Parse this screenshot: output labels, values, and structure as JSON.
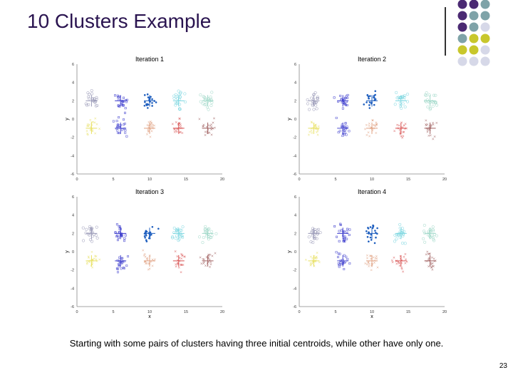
{
  "slide": {
    "title": "10 Clusters Example",
    "caption": "Starting with some pairs of clusters having three initial centroids, while other have only one.",
    "page_number": "23"
  },
  "decor": {
    "dot_colors": [
      "#4b2a73",
      "#7fa3a8",
      "#c8c72c",
      "#d6d8e8"
    ]
  },
  "chart_data": [
    {
      "type": "scatter",
      "title": "Iteration 1",
      "xlabel": "",
      "ylabel": "y",
      "xlim": [
        0,
        20
      ],
      "ylim": [
        -6,
        6
      ],
      "xticks": [
        "0",
        "5",
        "10",
        "15",
        "20"
      ],
      "yticks": [
        "6",
        "4",
        "2",
        "0",
        "-2",
        "-4",
        "-6"
      ],
      "clusters": [
        {
          "center": [
            2,
            2
          ],
          "color": "#9a9ab8"
        },
        {
          "center": [
            6,
            2
          ],
          "color": "#3a3acc"
        },
        {
          "center": [
            10,
            2
          ],
          "color": "#1f5fbf"
        },
        {
          "center": [
            14,
            2
          ],
          "color": "#7ad6e0"
        },
        {
          "center": [
            18,
            2
          ],
          "color": "#9ed8c8"
        },
        {
          "center": [
            2,
            -1
          ],
          "color": "#e8e060"
        },
        {
          "center": [
            6,
            -1
          ],
          "color": "#4a4ad0"
        },
        {
          "center": [
            10,
            -1
          ],
          "color": "#e0a080"
        },
        {
          "center": [
            14,
            -1
          ],
          "color": "#d85050"
        },
        {
          "center": [
            18,
            -1
          ],
          "color": "#a06060"
        }
      ],
      "centroids": [
        [
          2,
          2
        ],
        [
          6,
          2
        ],
        [
          10,
          2
        ],
        [
          14,
          2
        ],
        [
          18,
          2
        ],
        [
          2,
          -1
        ],
        [
          6,
          -1
        ],
        [
          10,
          -1
        ],
        [
          14,
          -1
        ],
        [
          18,
          -1
        ]
      ]
    },
    {
      "type": "scatter",
      "title": "Iteration 2",
      "xlabel": "",
      "ylabel": "y",
      "xlim": [
        0,
        20
      ],
      "ylim": [
        -6,
        6
      ],
      "xticks": [
        "0",
        "5",
        "10",
        "15",
        "20"
      ],
      "yticks": [
        "6",
        "4",
        "2",
        "0",
        "-2",
        "-4",
        "-6"
      ],
      "clusters": [
        {
          "center": [
            2,
            2
          ],
          "color": "#9a9ab8"
        },
        {
          "center": [
            6,
            2
          ],
          "color": "#3a3acc"
        },
        {
          "center": [
            10,
            2
          ],
          "color": "#1f5fbf"
        },
        {
          "center": [
            14,
            2
          ],
          "color": "#7ad6e0"
        },
        {
          "center": [
            18,
            2
          ],
          "color": "#9ed8c8"
        },
        {
          "center": [
            2,
            -1
          ],
          "color": "#e8e060"
        },
        {
          "center": [
            6,
            -1
          ],
          "color": "#4a4ad0"
        },
        {
          "center": [
            10,
            -1
          ],
          "color": "#e0a080"
        },
        {
          "center": [
            14,
            -1
          ],
          "color": "#d85050"
        },
        {
          "center": [
            18,
            -1
          ],
          "color": "#a06060"
        }
      ],
      "centroids": [
        [
          2,
          2
        ],
        [
          6,
          2
        ],
        [
          10,
          2
        ],
        [
          14,
          2
        ],
        [
          18,
          2
        ],
        [
          2,
          -1
        ],
        [
          6,
          -1
        ],
        [
          10,
          -1
        ],
        [
          14,
          -1
        ],
        [
          18,
          -1
        ]
      ]
    },
    {
      "type": "scatter",
      "title": "Iteration 3",
      "xlabel": "x",
      "ylabel": "y",
      "xlim": [
        0,
        20
      ],
      "ylim": [
        -6,
        6
      ],
      "xticks": [
        "0",
        "5",
        "10",
        "15",
        "20"
      ],
      "yticks": [
        "6",
        "4",
        "2",
        "0",
        "-2",
        "-4",
        "-6"
      ],
      "clusters": [
        {
          "center": [
            2,
            2
          ],
          "color": "#9a9ab8"
        },
        {
          "center": [
            6,
            2
          ],
          "color": "#3a3acc"
        },
        {
          "center": [
            10,
            2
          ],
          "color": "#1f5fbf"
        },
        {
          "center": [
            14,
            2
          ],
          "color": "#7ad6e0"
        },
        {
          "center": [
            18,
            2
          ],
          "color": "#9ed8c8"
        },
        {
          "center": [
            2,
            -1
          ],
          "color": "#e8e060"
        },
        {
          "center": [
            6,
            -1
          ],
          "color": "#4a4ad0"
        },
        {
          "center": [
            10,
            -1
          ],
          "color": "#e0a080"
        },
        {
          "center": [
            14,
            -1
          ],
          "color": "#d85050"
        },
        {
          "center": [
            18,
            -1
          ],
          "color": "#a06060"
        }
      ],
      "centroids": [
        [
          2,
          2
        ],
        [
          6,
          2
        ],
        [
          10,
          2
        ],
        [
          14,
          2
        ],
        [
          18,
          2
        ],
        [
          2,
          -1
        ],
        [
          6,
          -1
        ],
        [
          10,
          -1
        ],
        [
          14,
          -1
        ],
        [
          18,
          -1
        ]
      ]
    },
    {
      "type": "scatter",
      "title": "Iteration 4",
      "xlabel": "x",
      "ylabel": "y",
      "xlim": [
        0,
        20
      ],
      "ylim": [
        -6,
        6
      ],
      "xticks": [
        "0",
        "5",
        "10",
        "15",
        "20"
      ],
      "yticks": [
        "6",
        "4",
        "2",
        "0",
        "-2",
        "-4",
        "-6"
      ],
      "clusters": [
        {
          "center": [
            2,
            2
          ],
          "color": "#9a9ab8"
        },
        {
          "center": [
            6,
            2
          ],
          "color": "#3a3acc"
        },
        {
          "center": [
            10,
            2
          ],
          "color": "#1f5fbf"
        },
        {
          "center": [
            14,
            2
          ],
          "color": "#7ad6e0"
        },
        {
          "center": [
            18,
            2
          ],
          "color": "#9ed8c8"
        },
        {
          "center": [
            2,
            -1
          ],
          "color": "#e8e060"
        },
        {
          "center": [
            6,
            -1
          ],
          "color": "#4a4ad0"
        },
        {
          "center": [
            10,
            -1
          ],
          "color": "#e0a080"
        },
        {
          "center": [
            14,
            -1
          ],
          "color": "#d85050"
        },
        {
          "center": [
            18,
            -1
          ],
          "color": "#a06060"
        }
      ],
      "centroids": [
        [
          2,
          2
        ],
        [
          6,
          2
        ],
        [
          10,
          2
        ],
        [
          14,
          2
        ],
        [
          18,
          2
        ],
        [
          2,
          -1
        ],
        [
          6,
          -1
        ],
        [
          10,
          -1
        ],
        [
          14,
          -1
        ],
        [
          18,
          -1
        ]
      ]
    }
  ]
}
